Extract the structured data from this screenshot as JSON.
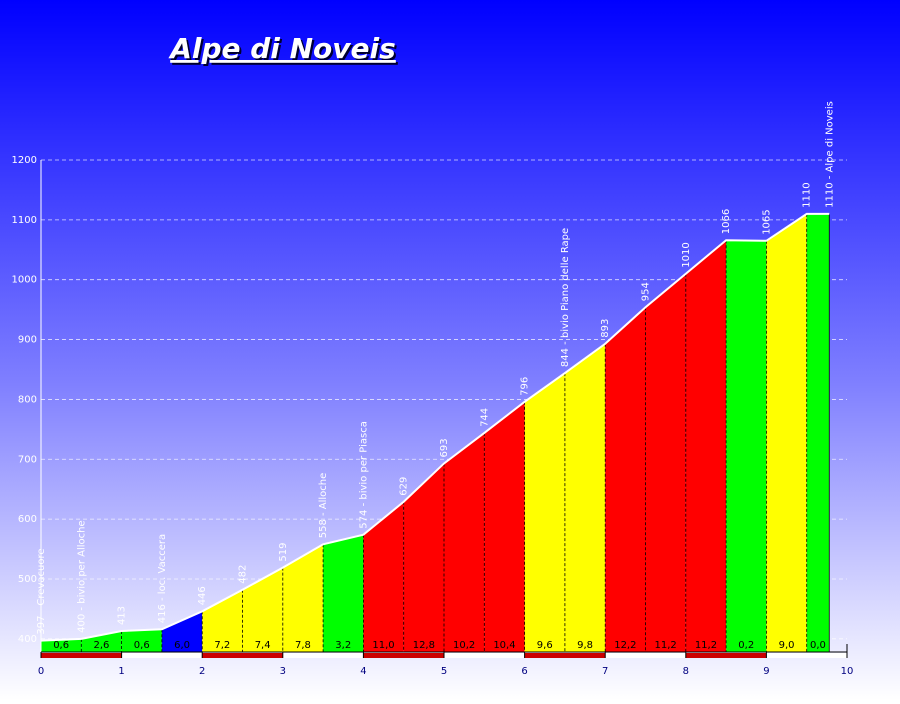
{
  "chart_data": {
    "type": "profile",
    "title": "Alpe di Noveis",
    "x": [
      0,
      0.5,
      1,
      1.5,
      2,
      2.5,
      3,
      3.5,
      4,
      4.5,
      5,
      5.5,
      6,
      6.5,
      7,
      7.5,
      8,
      8.5,
      9,
      9.5,
      9.78
    ],
    "values": [
      397,
      400,
      413,
      416,
      446,
      482,
      519,
      558,
      574,
      629,
      693,
      744,
      796,
      844,
      893,
      954,
      1010,
      1066,
      1065,
      1110,
      1110
    ],
    "value_labels": [
      "397 - Crevacuore",
      "400 - bivio per Alloche",
      "413",
      "416 - loc. Vaccera",
      "446",
      "482",
      "519",
      "558 - Alloche",
      "574 - bivio per Piasca",
      "629",
      "693",
      "744",
      "796",
      "844 - bivio Piano delle Rape",
      "893",
      "954",
      "1010",
      "1066",
      "1065",
      "1110",
      "1110 - Alpe di Noveis"
    ],
    "gradients": {
      "values": [
        0.6,
        2.6,
        0.6,
        6.0,
        7.2,
        7.4,
        7.8,
        3.2,
        11.0,
        12.8,
        10.2,
        10.4,
        9.6,
        9.8,
        12.2,
        11.2,
        11.2,
        0.2,
        9.0,
        0.0
      ],
      "value_labels": [
        "0,6",
        "2,6",
        "0,6",
        "6,0",
        "7,2",
        "7,4",
        "7,8",
        "3,2",
        "11,0",
        "12,8",
        "10,2",
        "10,4",
        "9,6",
        "9,8",
        "12,2",
        "11,2",
        "11,2",
        "0,2",
        "9,0",
        "0,0"
      ],
      "colors": [
        "#00ff00",
        "#00ff00",
        "#00ff00",
        "#0000ff",
        "#ffff00",
        "#ffff00",
        "#ffff00",
        "#00ff00",
        "#ff0000",
        "#ff0000",
        "#ff0000",
        "#ff0000",
        "#ffff00",
        "#ffff00",
        "#ff0000",
        "#ff0000",
        "#ff0000",
        "#00ff00",
        "#ffff00",
        "#00ff00"
      ]
    },
    "xlim": [
      0,
      10
    ],
    "xticks": [
      0,
      1,
      2,
      3,
      4,
      5,
      6,
      7,
      8,
      9,
      10
    ],
    "ylim": [
      378,
      1200
    ],
    "yticks": [
      400,
      500,
      600,
      700,
      800,
      900,
      1000,
      1100,
      1200
    ],
    "grid": true
  }
}
